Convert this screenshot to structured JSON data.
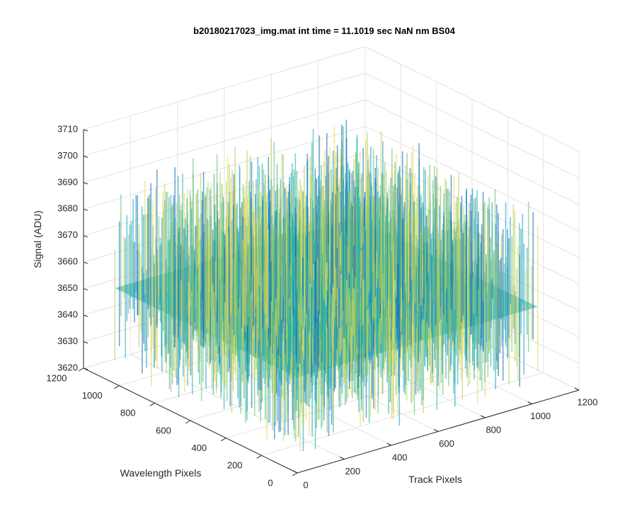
{
  "chart_data": {
    "type": "surface",
    "title": "b20180217023_img.mat int time = 11.1019 sec  NaN nm BS04",
    "xlabel": "Track Pixels",
    "ylabel": "Wavelength Pixels",
    "zlabel": "Signal (ADU)",
    "xlim": [
      0,
      1200
    ],
    "ylim": [
      0,
      1200
    ],
    "zlim": [
      3620,
      3710
    ],
    "x_ticks": [
      "0",
      "200",
      "400",
      "600",
      "800",
      "1000",
      "1200"
    ],
    "y_ticks": [
      "0",
      "200",
      "400",
      "600",
      "800",
      "1000",
      "1200"
    ],
    "z_ticks": [
      "3620",
      "3630",
      "3640",
      "3650",
      "3660",
      "3670",
      "3680",
      "3690",
      "3700",
      "3710"
    ],
    "surface_extent": {
      "x": [
        0,
        1024
      ],
      "y": [
        0,
        1024
      ]
    },
    "signal_mean": 3660,
    "signal_range": [
      3625,
      3705
    ],
    "grid": true,
    "colormap": [
      "#0f6fb8",
      "#1aa0c8",
      "#2bb39b",
      "#6cc07a",
      "#b9cf5c",
      "#e6d85a"
    ]
  }
}
